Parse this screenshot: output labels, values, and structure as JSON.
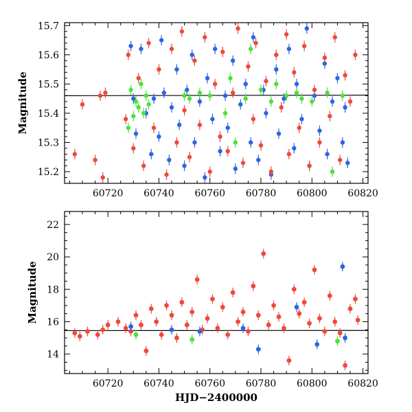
{
  "chart_data": [
    {
      "type": "scatter",
      "title": "",
      "xlabel": "",
      "ylabel": "Magnitude",
      "xlim": [
        60703,
        60822
      ],
      "ylim": [
        15.71,
        15.16
      ],
      "y_inverted": true,
      "xticks": [
        "60720",
        "60740",
        "60760",
        "60780",
        "60800",
        "60820"
      ],
      "yticks": [
        "15.2",
        "15.3",
        "15.4",
        "15.5",
        "15.6",
        "15.7"
      ],
      "trend_line": {
        "x": [
          60703,
          60822
        ],
        "y": [
          15.46,
          15.462
        ]
      },
      "series": [
        {
          "color": "#2e64e4",
          "x": [
            60729,
            60730,
            60731,
            60733,
            60735,
            60737,
            60738,
            60740,
            60741,
            60742,
            60744,
            60745,
            60747,
            60748,
            60750,
            60751,
            60753,
            60754,
            60756,
            60758,
            60759,
            60761,
            60762,
            60764,
            60766,
            60767,
            60769,
            60770,
            60772,
            60774,
            60776,
            60777,
            60779,
            60781,
            60782,
            60784,
            60786,
            60787,
            60789,
            60791,
            60793,
            60794,
            60796,
            60798,
            60799,
            60801,
            60803,
            60805,
            60806,
            60808,
            60810,
            60812,
            60813,
            60814
          ],
          "y": [
            15.63,
            15.45,
            15.33,
            15.62,
            15.4,
            15.26,
            15.45,
            15.32,
            15.65,
            15.47,
            15.24,
            15.42,
            15.55,
            15.36,
            15.22,
            15.48,
            15.6,
            15.3,
            15.44,
            15.18,
            15.52,
            15.38,
            15.62,
            15.27,
            15.46,
            15.35,
            15.58,
            15.21,
            15.43,
            15.5,
            15.3,
            15.66,
            15.24,
            15.48,
            15.4,
            15.19,
            15.55,
            15.33,
            15.45,
            15.62,
            15.28,
            15.5,
            15.38,
            15.69,
            15.22,
            15.46,
            15.34,
            15.57,
            15.26,
            15.44,
            15.52,
            15.3,
            15.42,
            15.23
          ]
        },
        {
          "color": "#ec4a3c",
          "x": [
            60707,
            60710,
            60715,
            60717,
            60718,
            60719,
            60727,
            60728,
            60730,
            60732,
            60734,
            60736,
            60738,
            60740,
            60743,
            60745,
            60747,
            60749,
            60750,
            60752,
            60754,
            60756,
            60758,
            60760,
            60762,
            60764,
            60765,
            60767,
            60769,
            60771,
            60773,
            60775,
            60777,
            60778,
            60780,
            60782,
            60784,
            60786,
            60788,
            60790,
            60791,
            60793,
            60795,
            60797,
            60799,
            60801,
            60803,
            60805,
            60807,
            60809,
            60811,
            60813,
            60815,
            60817
          ],
          "y": [
            15.26,
            15.43,
            15.24,
            15.46,
            15.18,
            15.47,
            15.38,
            15.6,
            15.28,
            15.52,
            15.22,
            15.64,
            15.35,
            15.55,
            15.19,
            15.62,
            15.3,
            15.68,
            15.41,
            15.25,
            15.58,
            15.36,
            15.66,
            15.2,
            15.5,
            15.32,
            15.61,
            15.27,
            15.47,
            15.69,
            15.23,
            15.56,
            15.38,
            15.64,
            15.29,
            15.51,
            15.2,
            15.6,
            15.42,
            15.67,
            15.26,
            15.54,
            15.35,
            15.63,
            15.22,
            15.48,
            15.3,
            15.59,
            15.39,
            15.66,
            15.24,
            15.53,
            15.44,
            15.6
          ]
        },
        {
          "color": "#4ee03c",
          "x": [
            60728,
            60729,
            60730,
            60731,
            60732,
            60733,
            60734,
            60735,
            60736,
            60750,
            60752,
            60756,
            60760,
            60766,
            60768,
            60770,
            60774,
            60776,
            60780,
            60784,
            60786,
            60790,
            60794,
            60796,
            60800,
            60806,
            60808,
            60812
          ],
          "y": [
            15.35,
            15.48,
            15.39,
            15.44,
            15.42,
            15.5,
            15.4,
            15.46,
            15.43,
            15.46,
            15.45,
            15.47,
            15.46,
            15.4,
            15.52,
            15.3,
            15.45,
            15.62,
            15.48,
            15.44,
            15.5,
            15.46,
            15.47,
            15.45,
            15.44,
            15.47,
            15.2,
            15.46
          ]
        }
      ]
    },
    {
      "type": "scatter",
      "title": "",
      "xlabel": "HJD−2400000",
      "ylabel": "Magnitude",
      "xlim": [
        60703,
        60822
      ],
      "ylim": [
        22.8,
        12.8
      ],
      "y_inverted": true,
      "xticks": [
        "60720",
        "60740",
        "60760",
        "60780",
        "60800",
        "60820"
      ],
      "yticks": [
        "14",
        "16",
        "18",
        "20",
        "22"
      ],
      "trend_line": {
        "x": [
          60703,
          60822
        ],
        "y": [
          15.45,
          15.46
        ]
      },
      "series": [
        {
          "color": "#ec4a3c",
          "x": [
            60707,
            60709,
            60712,
            60716,
            60718,
            60720,
            60724,
            60727,
            60729,
            60731,
            60733,
            60735,
            60737,
            60739,
            60741,
            60743,
            60745,
            60747,
            60749,
            60751,
            60753,
            60755,
            60757,
            60759,
            60761,
            60763,
            60765,
            60767,
            60769,
            60771,
            60773,
            60775,
            60777,
            60779,
            60781,
            60783,
            60785,
            60787,
            60789,
            60791,
            60793,
            60795,
            60797,
            60799,
            60801,
            60803,
            60805,
            60807,
            60809,
            60811,
            60813,
            60815,
            60817,
            60818
          ],
          "y": [
            15.3,
            15.1,
            15.4,
            15.2,
            15.5,
            15.8,
            16.0,
            15.6,
            15.4,
            16.4,
            15.8,
            14.2,
            16.8,
            16.0,
            15.2,
            17.0,
            16.4,
            15.0,
            17.2,
            15.8,
            16.6,
            18.6,
            15.5,
            16.2,
            17.4,
            15.6,
            16.9,
            15.2,
            17.8,
            16.0,
            16.6,
            15.4,
            18.2,
            16.4,
            20.2,
            15.8,
            17.0,
            16.3,
            15.6,
            13.6,
            18.0,
            16.5,
            17.2,
            15.9,
            19.2,
            16.2,
            15.4,
            17.6,
            16.0,
            15.3,
            13.3,
            16.8,
            17.4,
            16.1
          ]
        },
        {
          "color": "#2e64e4",
          "x": [
            60729,
            60745,
            60756,
            60773,
            60779,
            60794,
            60802,
            60812,
            60813
          ],
          "y": [
            15.7,
            15.5,
            15.4,
            15.6,
            14.3,
            16.9,
            14.6,
            19.4,
            15.0
          ]
        },
        {
          "color": "#4ee03c",
          "x": [
            60731,
            60753,
            60810
          ],
          "y": [
            15.2,
            14.9,
            14.8
          ]
        }
      ]
    }
  ]
}
